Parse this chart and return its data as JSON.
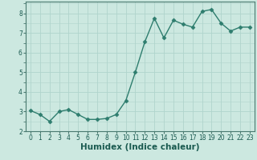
{
  "x": [
    0,
    1,
    2,
    3,
    4,
    5,
    6,
    7,
    8,
    9,
    10,
    11,
    12,
    13,
    14,
    15,
    16,
    17,
    18,
    19,
    20,
    21,
    22,
    23
  ],
  "y": [
    3.05,
    2.85,
    2.5,
    3.0,
    3.1,
    2.85,
    2.6,
    2.6,
    2.65,
    2.85,
    3.55,
    5.0,
    6.55,
    7.75,
    6.75,
    7.65,
    7.45,
    7.3,
    8.1,
    8.2,
    7.5,
    7.1,
    7.3,
    7.3
  ],
  "line_color": "#2e7d6e",
  "marker": "D",
  "marker_size": 2.5,
  "bg_color": "#cce8e0",
  "grid_color": "#b0d4cc",
  "axis_bg": "#cce8e0",
  "xlabel": "Humidex (Indice chaleur)",
  "xlim": [
    -0.5,
    23.5
  ],
  "ylim": [
    2.0,
    8.6
  ],
  "yticks": [
    2,
    3,
    4,
    5,
    6,
    7,
    8
  ],
  "xticks": [
    0,
    1,
    2,
    3,
    4,
    5,
    6,
    7,
    8,
    9,
    10,
    11,
    12,
    13,
    14,
    15,
    16,
    17,
    18,
    19,
    20,
    21,
    22,
    23
  ],
  "tick_label_fontsize": 5.5,
  "xlabel_fontsize": 7.5,
  "line_width": 1.0
}
